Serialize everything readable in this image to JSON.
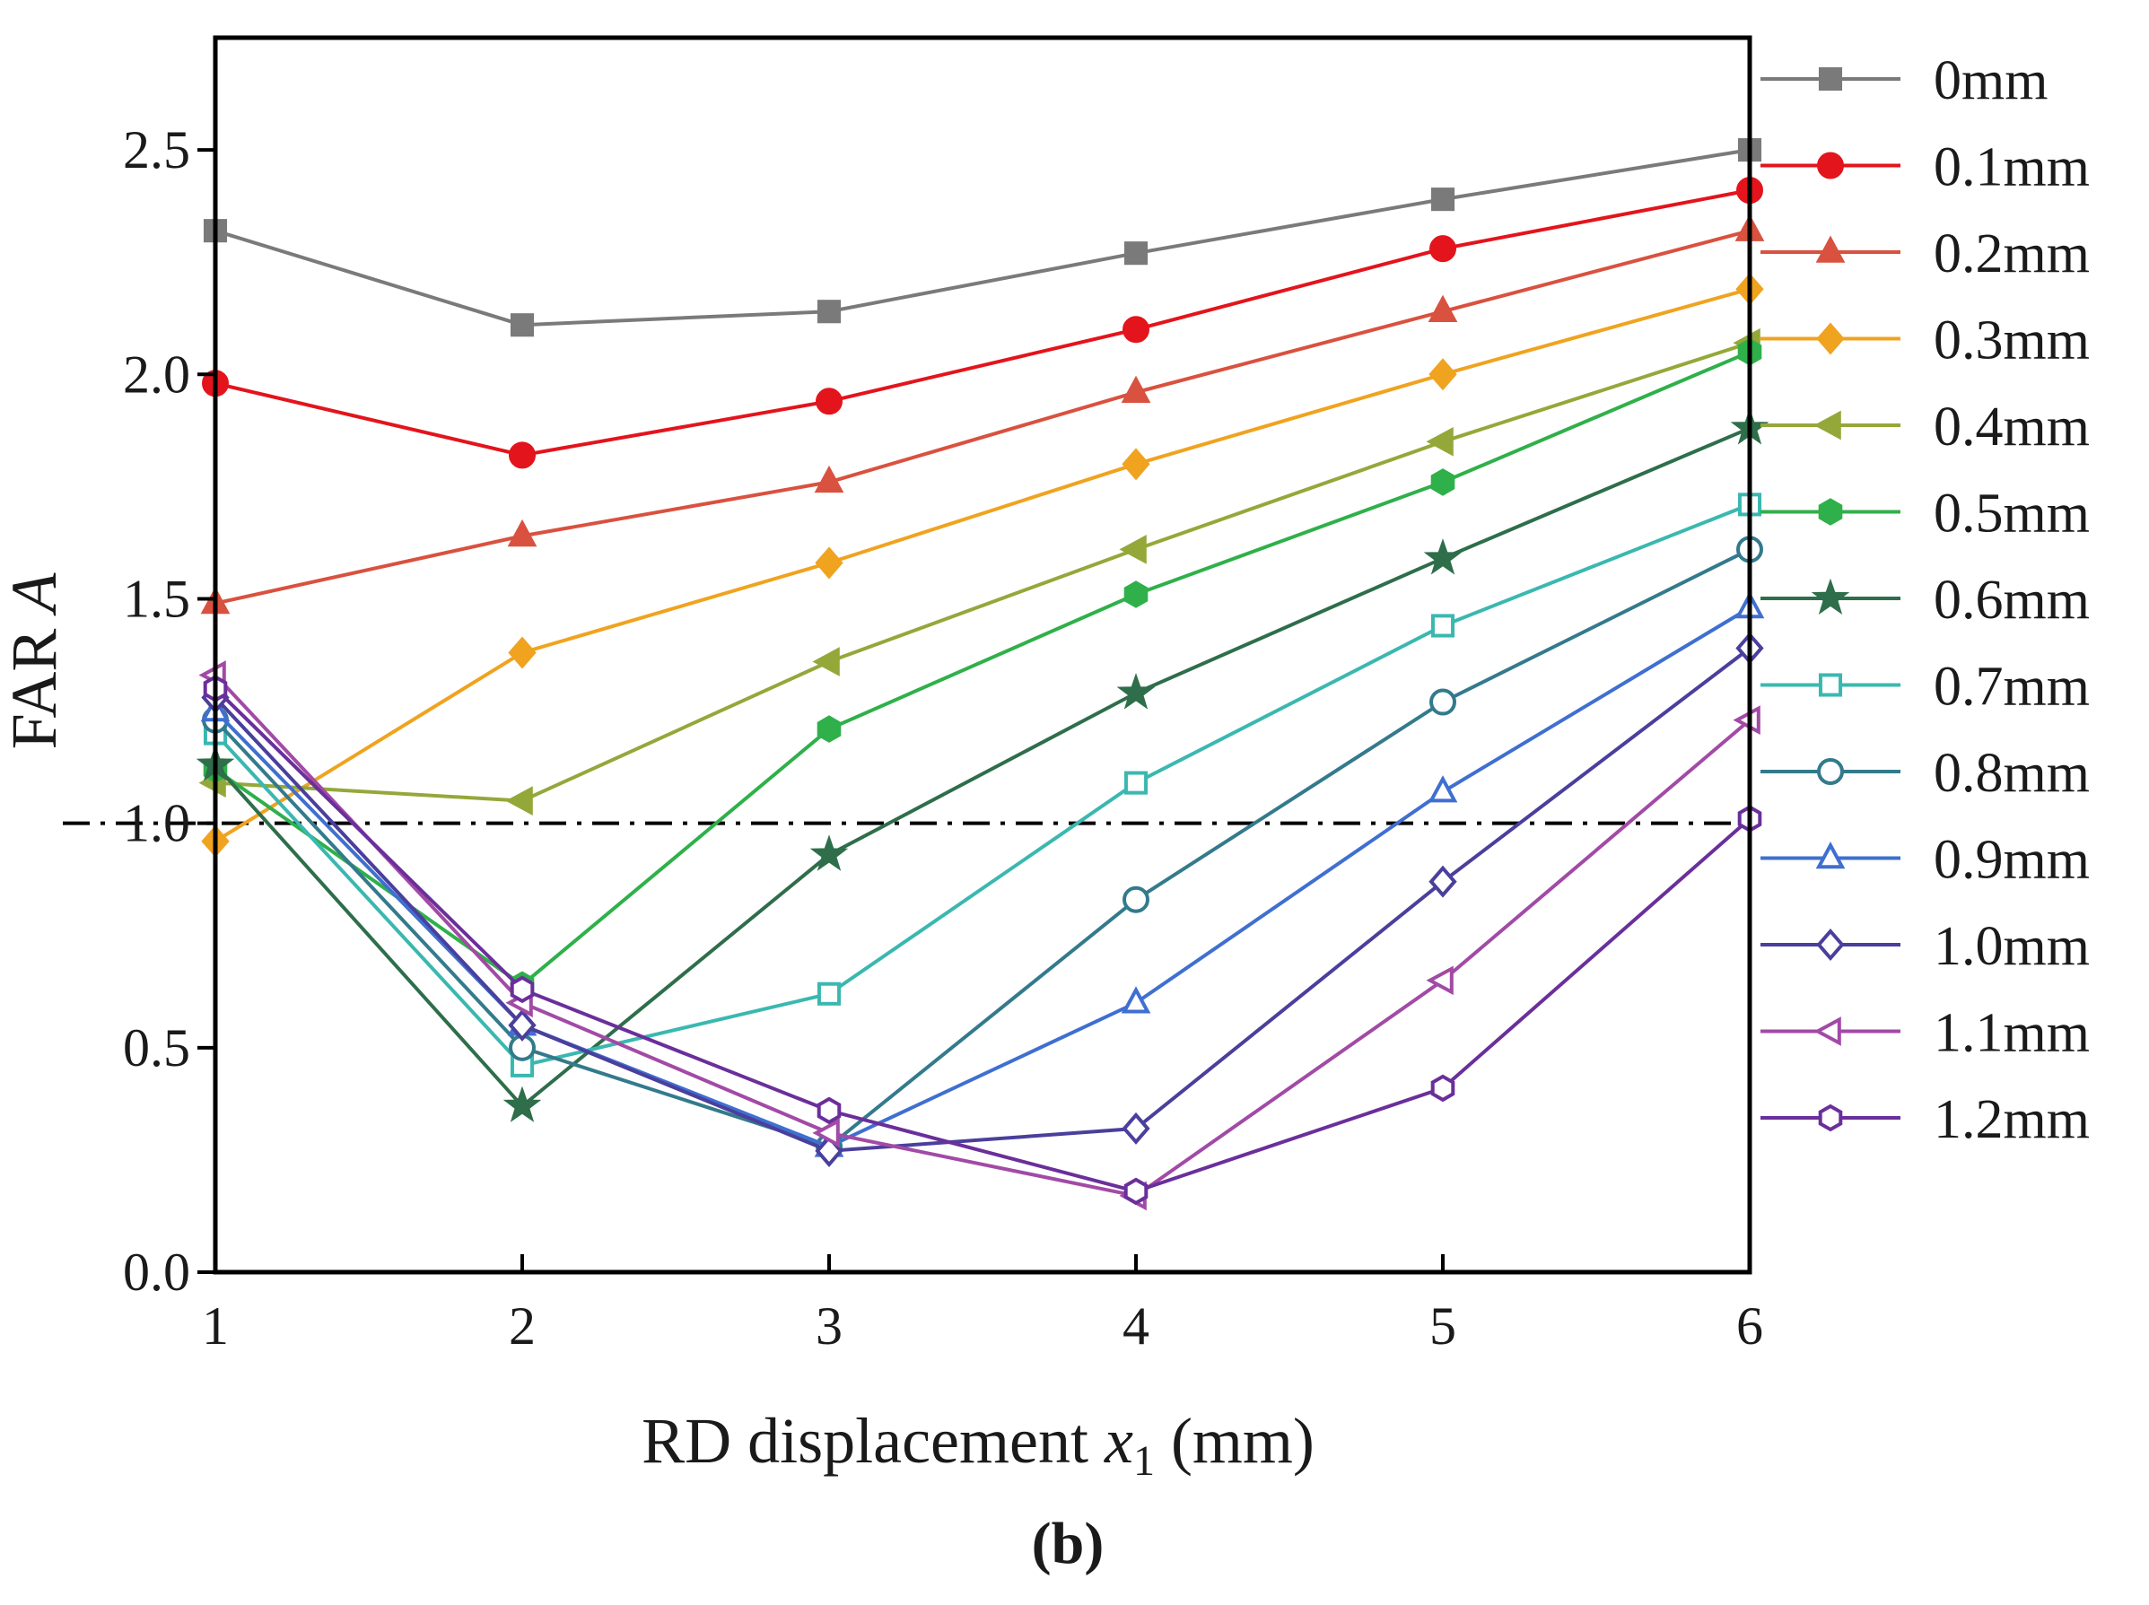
{
  "panel_label": "(b)",
  "chart_data": {
    "type": "line",
    "ylabel_prefix": "FAR ",
    "ylabel_italic": "A",
    "xlabel_prefix": "RD displacement ",
    "xlabel_var": "x",
    "xlabel_sub": "1",
    "xlabel_suffix": " (mm)",
    "x": [
      1,
      2,
      3,
      4,
      5,
      6
    ],
    "xlim": [
      1,
      6
    ],
    "ylim": [
      0,
      2.75
    ],
    "xticks": [
      "1",
      "2",
      "3",
      "4",
      "5",
      "6"
    ],
    "yticks": [
      "0.0",
      "0.5",
      "1.0",
      "1.5",
      "2.0",
      "2.5"
    ],
    "reference_line": {
      "y": 1.0,
      "style": "dash-dot",
      "color": "#000000"
    },
    "grid": false,
    "legend_position": "right-outside",
    "series": [
      {
        "name": "0mm",
        "color": "#7a7a7a",
        "marker": "square",
        "filled": true,
        "values": [
          2.32,
          2.11,
          2.14,
          2.27,
          2.39,
          2.5
        ]
      },
      {
        "name": "0.1mm",
        "color": "#e3141c",
        "marker": "circle",
        "filled": true,
        "values": [
          1.98,
          1.82,
          1.94,
          2.1,
          2.28,
          2.41
        ]
      },
      {
        "name": "0.2mm",
        "color": "#d9513f",
        "marker": "triangle-up",
        "filled": true,
        "values": [
          1.49,
          1.64,
          1.76,
          1.96,
          2.14,
          2.32
        ]
      },
      {
        "name": "0.3mm",
        "color": "#f0a31f",
        "marker": "diamond",
        "filled": true,
        "values": [
          0.96,
          1.38,
          1.58,
          1.8,
          2.0,
          2.19
        ]
      },
      {
        "name": "0.4mm",
        "color": "#94a83a",
        "marker": "triangle-left",
        "filled": true,
        "values": [
          1.09,
          1.05,
          1.36,
          1.61,
          1.85,
          2.07
        ]
      },
      {
        "name": "0.5mm",
        "color": "#2fb04a",
        "marker": "hexagon",
        "filled": true,
        "values": [
          1.12,
          0.64,
          1.21,
          1.51,
          1.76,
          2.05
        ]
      },
      {
        "name": "0.6mm",
        "color": "#2e6e4a",
        "marker": "star",
        "filled": true,
        "values": [
          1.13,
          0.37,
          0.93,
          1.29,
          1.59,
          1.88
        ]
      },
      {
        "name": "0.7mm",
        "color": "#3ab8b0",
        "marker": "square",
        "filled": false,
        "values": [
          1.2,
          0.46,
          0.62,
          1.09,
          1.44,
          1.71
        ]
      },
      {
        "name": "0.8mm",
        "color": "#337a8c",
        "marker": "circle",
        "filled": false,
        "values": [
          1.23,
          0.5,
          0.28,
          0.83,
          1.27,
          1.61
        ]
      },
      {
        "name": "0.9mm",
        "color": "#3f6fd0",
        "marker": "triangle-up",
        "filled": false,
        "values": [
          1.25,
          0.55,
          0.28,
          0.6,
          1.07,
          1.48
        ]
      },
      {
        "name": "1.0mm",
        "color": "#4a3f9c",
        "marker": "diamond",
        "filled": false,
        "values": [
          1.28,
          0.55,
          0.27,
          0.32,
          0.87,
          1.39
        ]
      },
      {
        "name": "1.1mm",
        "color": "#a24aa6",
        "marker": "triangle-left",
        "filled": false,
        "values": [
          1.33,
          0.6,
          0.31,
          0.17,
          0.65,
          1.23
        ]
      },
      {
        "name": "1.2mm",
        "color": "#6a2f9a",
        "marker": "hexagon",
        "filled": false,
        "values": [
          1.3,
          0.63,
          0.36,
          0.18,
          0.41,
          1.01
        ]
      }
    ]
  }
}
